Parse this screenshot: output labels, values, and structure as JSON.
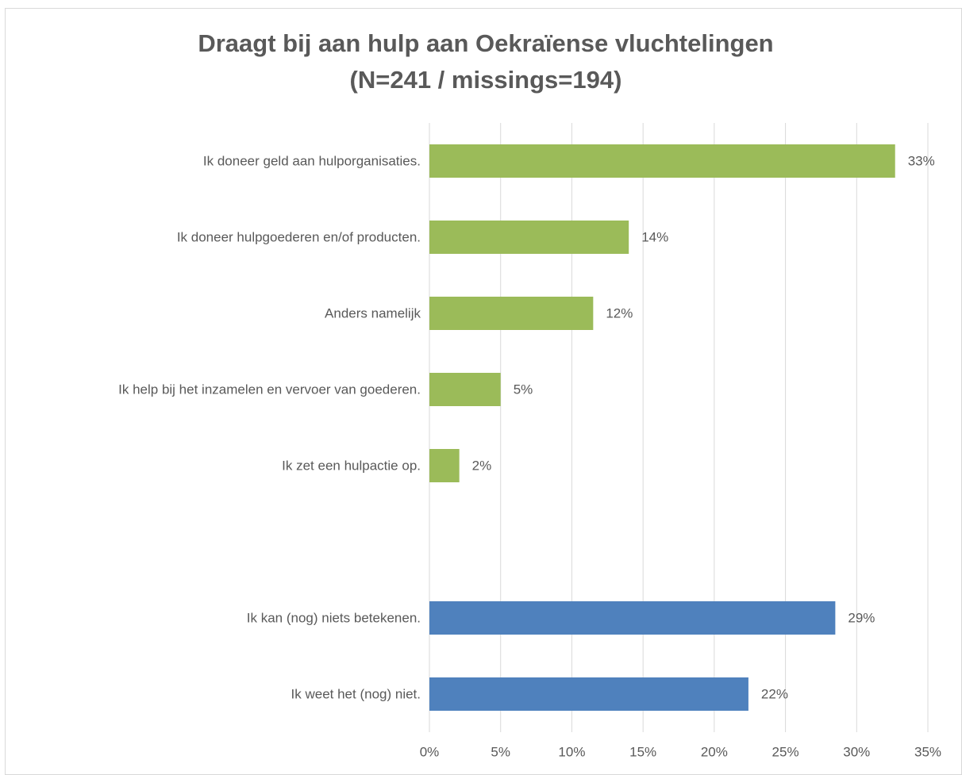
{
  "chart_data": {
    "type": "hbar",
    "title": "Draagt bij aan hulp aan Oekraïense vluchtelingen",
    "subtitle": "(N=241 / missings=194)",
    "categories": [
      "Ik doneer geld aan hulporganisaties.",
      "Ik doneer hulpgoederen en/of producten.",
      "Anders namelijk",
      "Ik help bij het inzamelen en vervoer van goederen.",
      "Ik zet een hulpactie op.",
      null,
      "Ik kan (nog) niets betekenen.",
      "Ik weet het (nog) niet."
    ],
    "values": [
      32.7,
      14,
      11.5,
      5,
      2.1,
      null,
      28.5,
      22.4
    ],
    "value_labels": [
      "33%",
      "14%",
      "12%",
      "5%",
      "2%",
      null,
      "29%",
      "22%"
    ],
    "colors": [
      "#9bbb59",
      "#9bbb59",
      "#9bbb59",
      "#9bbb59",
      "#9bbb59",
      null,
      "#4f81bd",
      "#4f81bd"
    ],
    "xlim": [
      0,
      35
    ],
    "xticks": [
      {
        "value": 0,
        "label": "0%"
      },
      {
        "value": 5,
        "label": "5%"
      },
      {
        "value": 10,
        "label": "10%"
      },
      {
        "value": 15,
        "label": "15%"
      },
      {
        "value": 20,
        "label": "20%"
      },
      {
        "value": 25,
        "label": "25%"
      },
      {
        "value": 30,
        "label": "30%"
      },
      {
        "value": 35,
        "label": "35%"
      }
    ],
    "grid": true
  }
}
